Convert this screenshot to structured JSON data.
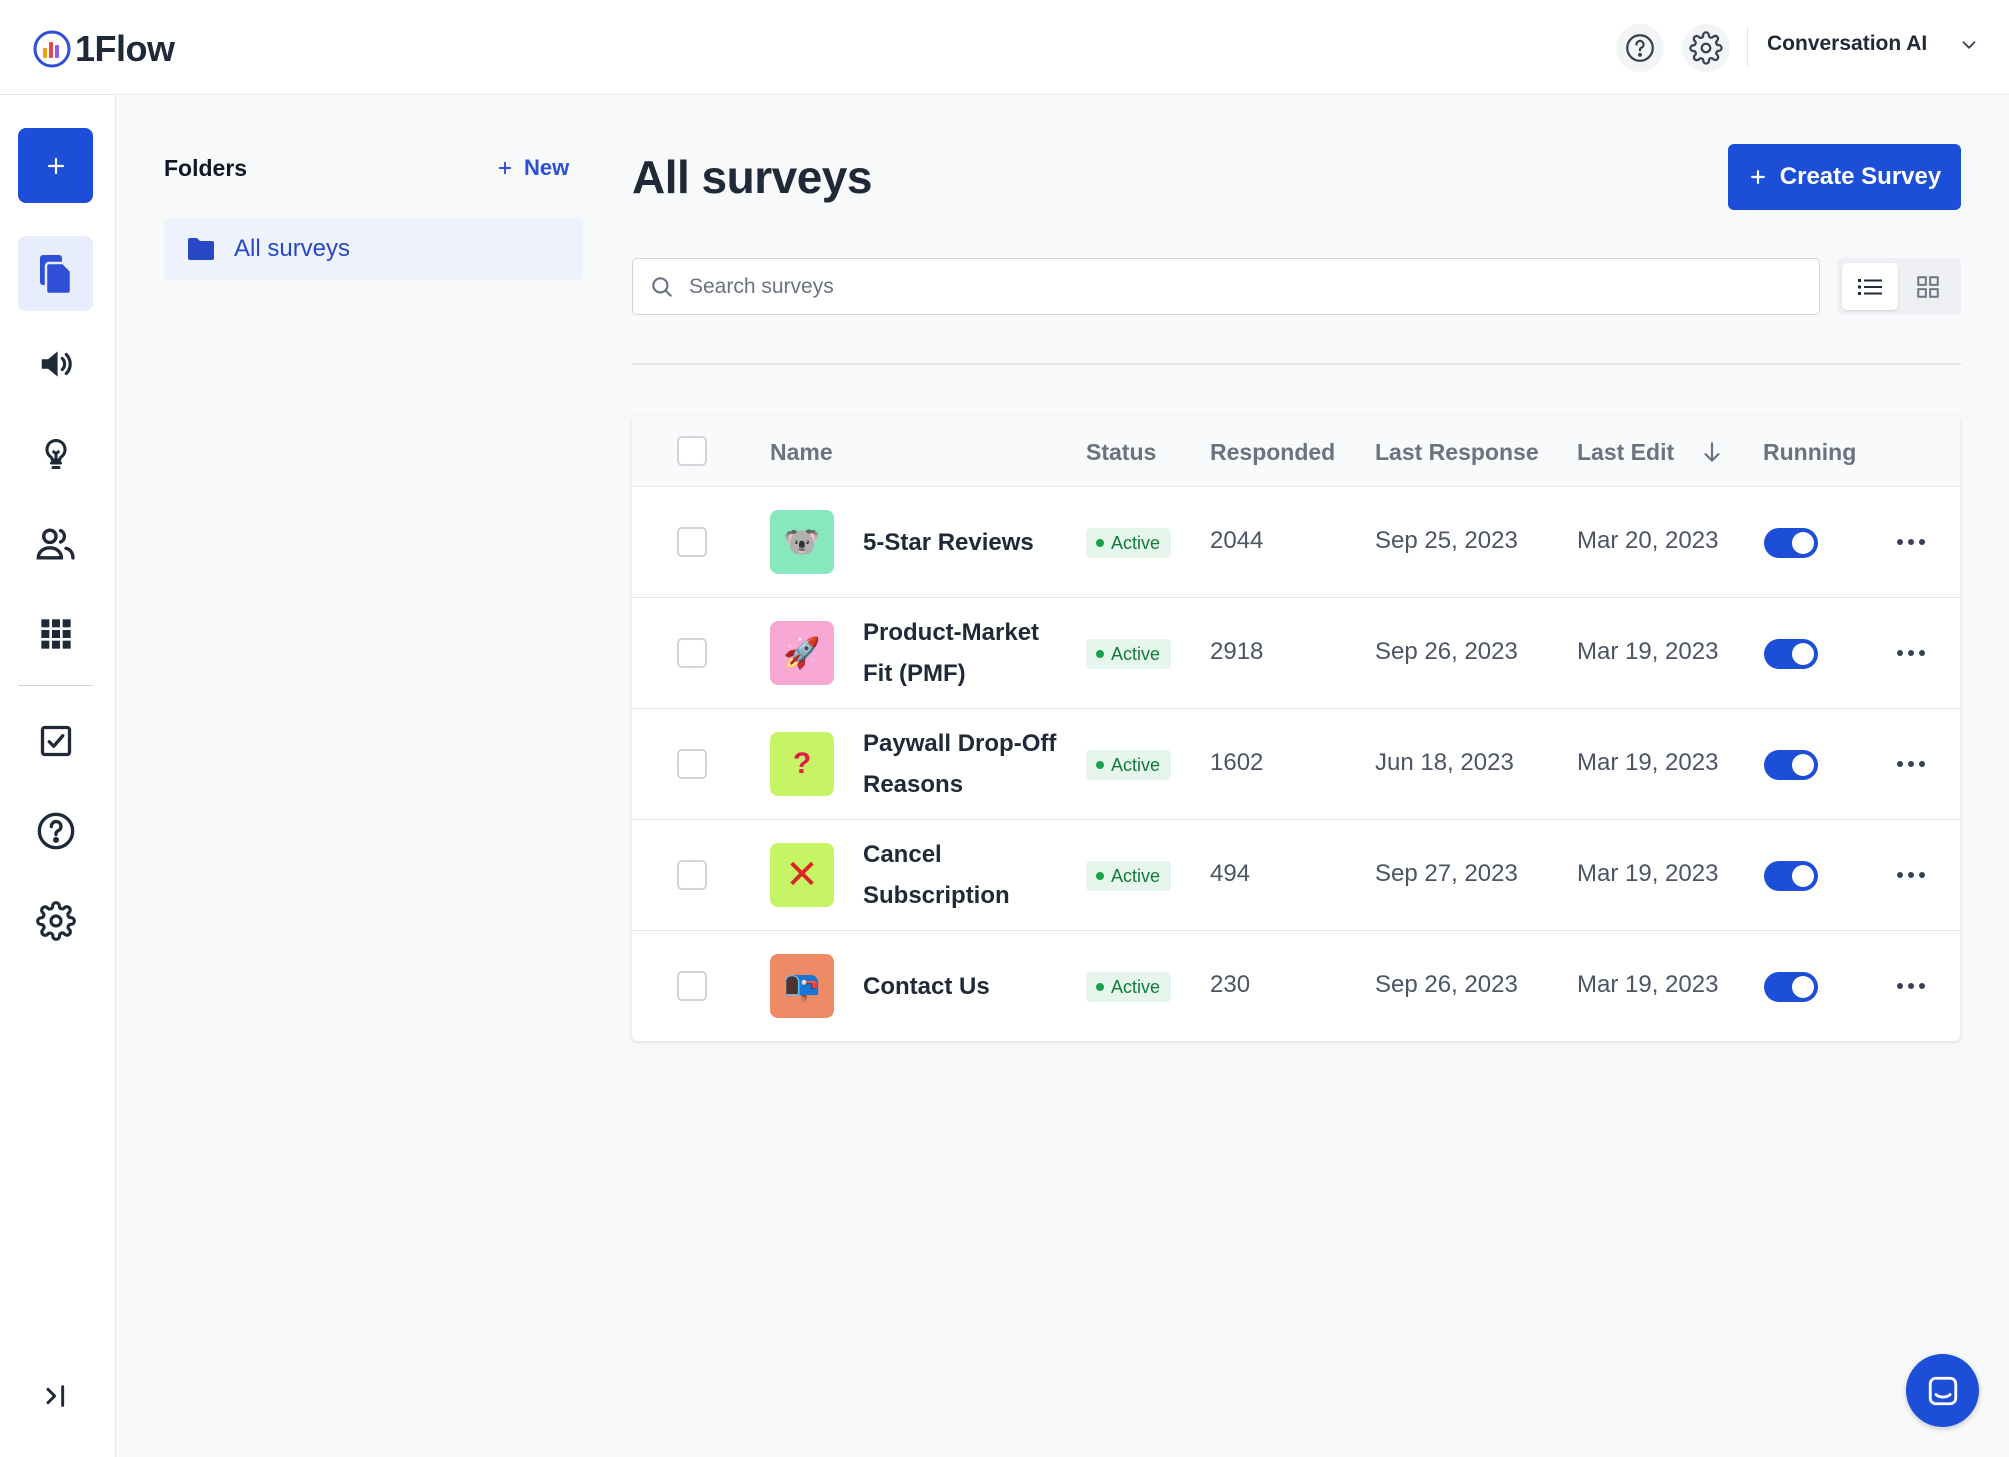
{
  "app": {
    "name": "1Flow"
  },
  "header": {
    "workspace": "Conversation AI"
  },
  "folders": {
    "title": "Folders",
    "new_label": "New",
    "items": [
      {
        "label": "All surveys"
      }
    ]
  },
  "main": {
    "title": "All surveys",
    "create_label": "Create Survey",
    "search_placeholder": "Search surveys",
    "search_value": ""
  },
  "table": {
    "columns": [
      "Name",
      "Status",
      "Responded",
      "Last Response",
      "Last Edit",
      "Running"
    ],
    "sort_column": "Last Edit",
    "sort_direction": "descending",
    "rows": [
      {
        "emoji": "🐨",
        "avatar_color": "#86e8bc",
        "name": "5-Star Reviews",
        "status": "Active",
        "responded": "2044",
        "last_response": "Sep 25, 2023",
        "last_edit": "Mar 20, 2023",
        "running": true
      },
      {
        "emoji": "🚀",
        "avatar_color": "#f8a8d4",
        "name": "Product-Market Fit (PMF)",
        "status": "Active",
        "responded": "2918",
        "last_response": "Sep 26, 2023",
        "last_edit": "Mar 19, 2023",
        "running": true
      },
      {
        "emoji": "?",
        "avatar_color": "#c7f464",
        "name": "Paywall Drop-Off Reasons",
        "status": "Active",
        "responded": "1602",
        "last_response": "Jun 18, 2023",
        "last_edit": "Mar 19, 2023",
        "running": true
      },
      {
        "emoji": "✕",
        "avatar_color": "#c7f464",
        "name": "Cancel Subscription",
        "status": "Active",
        "responded": "494",
        "last_response": "Sep 27, 2023",
        "last_edit": "Mar 19, 2023",
        "running": true
      },
      {
        "emoji": "📭",
        "avatar_color": "#ee8a66",
        "name": "Contact Us",
        "status": "Active",
        "responded": "230",
        "last_response": "Sep 26, 2023",
        "last_edit": "Mar 19, 2023",
        "running": true
      }
    ]
  },
  "sidebar": {
    "items": [
      {
        "icon": "plus-icon"
      },
      {
        "icon": "surveys-documents-icon",
        "active": true
      },
      {
        "icon": "megaphone-icon"
      },
      {
        "icon": "lightbulb-icon"
      },
      {
        "icon": "users-icon"
      },
      {
        "icon": "apps-grid-icon"
      },
      {
        "icon": "checkbox-icon"
      },
      {
        "icon": "help-circle-icon"
      },
      {
        "icon": "settings-gear-icon"
      }
    ]
  },
  "colors": {
    "primary": "#1d4ed8",
    "active_badge_bg": "#e7f6ec",
    "active_badge_text": "#137a3a"
  }
}
